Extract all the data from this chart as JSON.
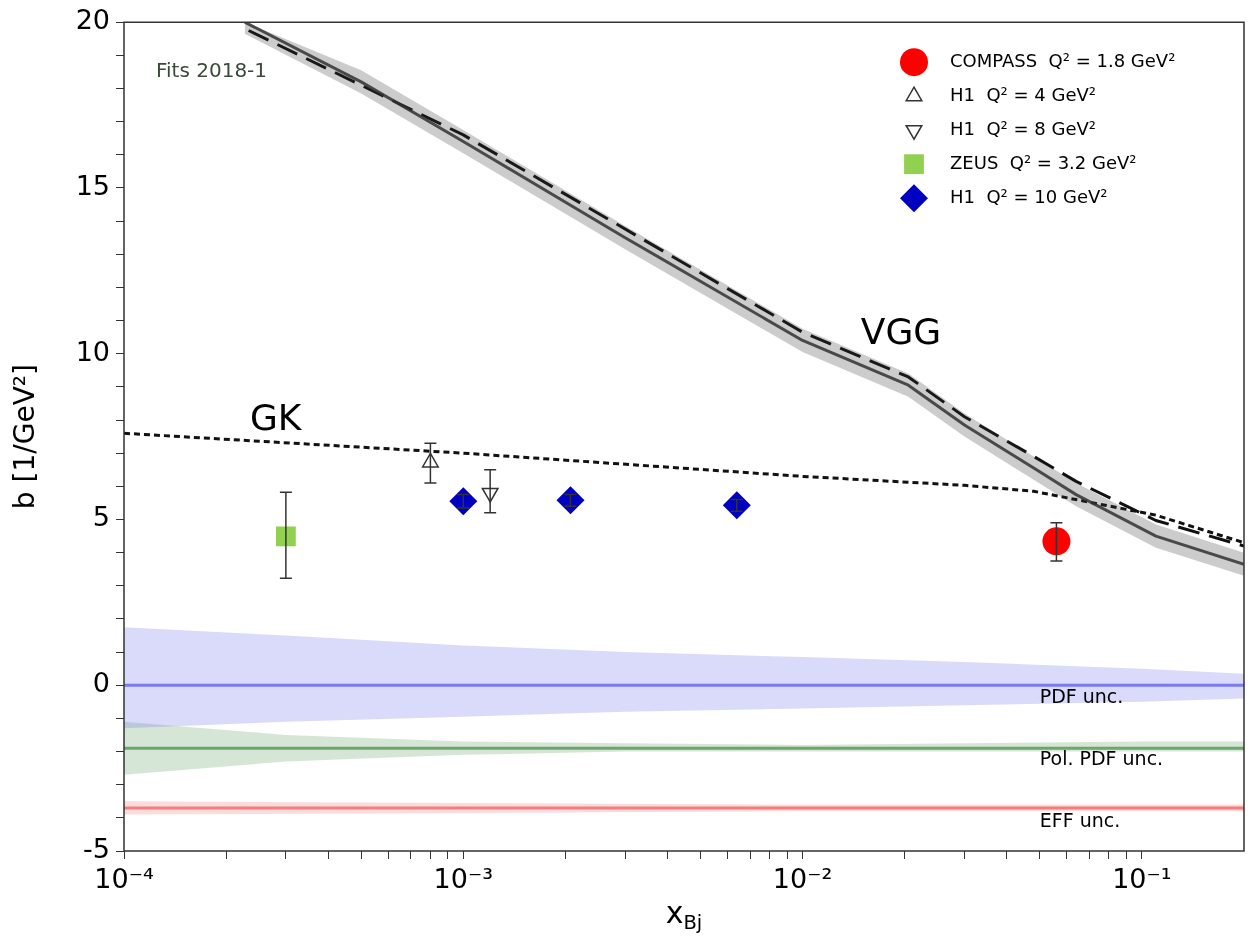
{
  "chart_data": {
    "type": "line",
    "xlabel": "x$_{Bj}$",
    "ylabel": "b [1/GeV²]",
    "log": "x",
    "legend": "top right",
    "grid": false,
    "xlim": [
      0.0001,
      0.2
    ],
    "ylim": [
      -5,
      20
    ],
    "xticks": [
      {
        "value": 0.0001,
        "label": "10⁻⁴"
      },
      {
        "value": 0.0002,
        "label": null
      },
      {
        "value": 0.0003,
        "label": null
      },
      {
        "value": 0.0004,
        "label": null
      },
      {
        "value": 0.0005,
        "label": null
      },
      {
        "value": 0.0006,
        "label": null
      },
      {
        "value": 0.0007,
        "label": null
      },
      {
        "value": 0.0008,
        "label": null
      },
      {
        "value": 0.0009,
        "label": null
      },
      {
        "value": 0.001,
        "label": "10⁻³"
      },
      {
        "value": 0.002,
        "label": null
      },
      {
        "value": 0.003,
        "label": null
      },
      {
        "value": 0.004,
        "label": null
      },
      {
        "value": 0.005,
        "label": null
      },
      {
        "value": 0.006,
        "label": null
      },
      {
        "value": 0.007,
        "label": null
      },
      {
        "value": 0.008,
        "label": null
      },
      {
        "value": 0.009,
        "label": null
      },
      {
        "value": 0.01,
        "label": "10⁻²"
      },
      {
        "value": 0.02,
        "label": null
      },
      {
        "value": 0.03,
        "label": null
      },
      {
        "value": 0.04,
        "label": null
      },
      {
        "value": 0.05,
        "label": null
      },
      {
        "value": 0.06,
        "label": null
      },
      {
        "value": 0.07,
        "label": null
      },
      {
        "value": 0.08,
        "label": null
      },
      {
        "value": 0.09,
        "label": null
      },
      {
        "value": 0.1,
        "label": "10⁻¹"
      }
    ],
    "yticks": [
      -5,
      {
        "value": -4,
        "label": null
      },
      {
        "value": -3,
        "label": null
      },
      {
        "value": -2,
        "label": null
      },
      {
        "value": -1,
        "label": null
      },
      0,
      {
        "value": 1,
        "label": null
      },
      {
        "value": 2,
        "label": null
      },
      {
        "value": 3,
        "label": null
      },
      {
        "value": 4,
        "label": null
      },
      5,
      {
        "value": 6,
        "label": null
      },
      {
        "value": 7,
        "label": null
      },
      {
        "value": 8,
        "label": null
      },
      {
        "value": 9,
        "label": null
      },
      10,
      {
        "value": 11,
        "label": null
      },
      {
        "value": 12,
        "label": null
      },
      {
        "value": 13,
        "label": null
      },
      {
        "value": 14,
        "label": null
      },
      15,
      {
        "value": 16,
        "label": null
      },
      {
        "value": 17,
        "label": null
      },
      {
        "value": 18,
        "label": null
      },
      {
        "value": 19,
        "label": null
      },
      20
    ],
    "series": [
      {
        "color": "#6a6af0",
        "x": [
          0.0001,
          0.0003,
          0.001,
          0.003,
          0.01,
          0.03,
          0.1,
          0.2
        ],
        "values": [
          0,
          0,
          0,
          0,
          0,
          0,
          0,
          0
        ],
        "upper": [
          1.75,
          1.5,
          1.2,
          1.0,
          0.85,
          0.7,
          0.5,
          0.35
        ],
        "lower": [
          -1.3,
          -1.1,
          -0.95,
          -0.8,
          -0.7,
          -0.6,
          -0.5,
          -0.4
        ]
      },
      {
        "color": "#5a9a5a",
        "x": [
          0.0001,
          0.0003,
          0.001,
          0.003,
          0.01,
          0.03,
          0.1,
          0.2
        ],
        "values": [
          -1.9,
          -1.9,
          -1.9,
          -1.9,
          -1.9,
          -1.9,
          -1.9,
          -1.9
        ],
        "upper": [
          -1.1,
          -1.5,
          -1.7,
          -1.75,
          -1.8,
          -1.75,
          -1.7,
          -1.7
        ],
        "lower": [
          -2.7,
          -2.3,
          -2.1,
          -2.0,
          -2.0,
          -2.0,
          -2.0,
          -2.0
        ]
      },
      {
        "color": "#f07070",
        "x": [
          0.0001,
          0.001,
          0.01,
          0.1,
          0.2
        ],
        "values": [
          -3.7,
          -3.7,
          -3.7,
          -3.7,
          -3.7
        ],
        "upper": [
          -3.5,
          -3.55,
          -3.6,
          -3.6,
          -3.6
        ],
        "lower": [
          -3.9,
          -3.85,
          -3.8,
          -3.8,
          -3.8
        ]
      },
      {
        "color": "#333333",
        "line_style": "solid",
        "x": [
          0.000227,
          0.0005,
          0.001,
          0.003,
          0.01,
          0.0205,
          0.03,
          0.048,
          0.064,
          0.11,
          0.2
        ],
        "values": [
          20,
          18.2,
          16.4,
          13.5,
          10.4,
          9.05,
          7.85,
          6.55,
          5.75,
          4.5,
          3.65
        ],
        "upper": [
          20,
          18.55,
          16.75,
          13.85,
          10.75,
          9.4,
          8.2,
          6.9,
          6.1,
          4.85,
          4.0
        ],
        "lower": [
          19.65,
          17.85,
          16.05,
          13.15,
          10.05,
          8.7,
          7.5,
          6.2,
          5.4,
          4.15,
          3.3
        ]
      },
      {
        "color": "#111111",
        "line_style": "dashed",
        "x": [
          0.000233,
          0.001,
          0.01,
          0.0205,
          0.03,
          0.048,
          0.064,
          0.11,
          0.2
        ],
        "values": [
          19.75,
          16.6,
          10.65,
          9.3,
          8.1,
          6.9,
          6.15,
          4.97,
          4.2
        ]
      },
      {
        "color": "#111111",
        "line_style": "dotted",
        "x": [
          0.0001,
          0.001,
          0.01,
          0.03,
          0.048,
          0.11,
          0.2
        ],
        "values": [
          7.6,
          7.0,
          6.3,
          6.03,
          5.85,
          5.13,
          4.3
        ]
      },
      {
        "type": "scatter",
        "name": "COMPASS  Q² = 1.8 GeV²",
        "color": "#ff0000",
        "marker": "circle",
        "x": [
          0.056
        ],
        "values": [
          4.34
        ],
        "errors": [
          [
            3.75,
            4.9
          ]
        ]
      },
      {
        "type": "scatter",
        "name": "H1  Q² = 4 GeV²",
        "color": "#333333",
        "marker": "triangle",
        "x": [
          0.0008
        ],
        "values": [
          6.72
        ],
        "errors": [
          [
            6.1,
            7.3
          ]
        ]
      },
      {
        "type": "scatter",
        "name": "H1  Q² = 8 GeV²",
        "color": "#333333",
        "marker": "triangle-down",
        "x": [
          0.0012
        ],
        "values": [
          5.8
        ],
        "errors": [
          [
            5.2,
            6.5
          ]
        ]
      },
      {
        "type": "scatter",
        "name": "ZEUS  Q² = 3.2 GeV²",
        "color": "#92d050",
        "marker": "square",
        "x": [
          0.0003
        ],
        "values": [
          4.49
        ],
        "errors": [
          [
            3.23,
            5.82
          ]
        ]
      },
      {
        "type": "scatter",
        "name": "H1  Q² = 10 GeV²",
        "color": "#0000c0",
        "marker": "diamond",
        "x": [
          0.001,
          0.00207,
          0.0064
        ],
        "values": [
          5.55,
          5.58,
          5.43
        ],
        "errors": [
          [
            5.35,
            5.75
          ],
          [
            5.4,
            5.75
          ],
          [
            5.25,
            5.6
          ]
        ]
      }
    ],
    "annotations": [
      "Fits 2018-1",
      {
        "text": "VGG",
        "x": 0.0195,
        "y": 9.1
      },
      {
        "text": "GK",
        "x": 0.00028,
        "y": 7.33
      },
      {
        "text": "PDF unc.",
        "x": 0.05,
        "y": 0
      },
      {
        "text": "Pol. PDF unc.",
        "x": 0.05,
        "y": -1.9
      },
      {
        "text": "EFF unc.",
        "x": 0.05,
        "y": -3.7
      }
    ]
  }
}
